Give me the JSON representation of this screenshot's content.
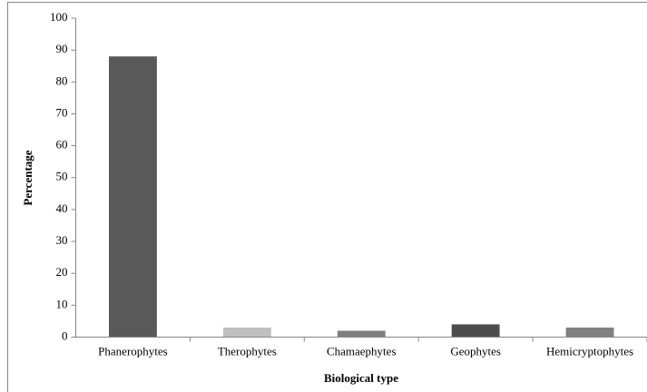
{
  "chart_data": {
    "type": "bar",
    "xlabel": "Biological type",
    "ylabel": "Percentage",
    "categories": [
      "Phanerophytes",
      "Therophytes",
      "Chamaephytes",
      "Geophytes",
      "Hemicryptophytes"
    ],
    "values": [
      88,
      3,
      2,
      4,
      3
    ],
    "colors": [
      "#595959",
      "#bfbfbf",
      "#7f7f7f",
      "#4d4d4d",
      "#808080"
    ],
    "ylim": [
      0,
      100
    ],
    "yticks": [
      0,
      10,
      20,
      30,
      40,
      50,
      60,
      70,
      80,
      90,
      100
    ],
    "grid": false
  }
}
